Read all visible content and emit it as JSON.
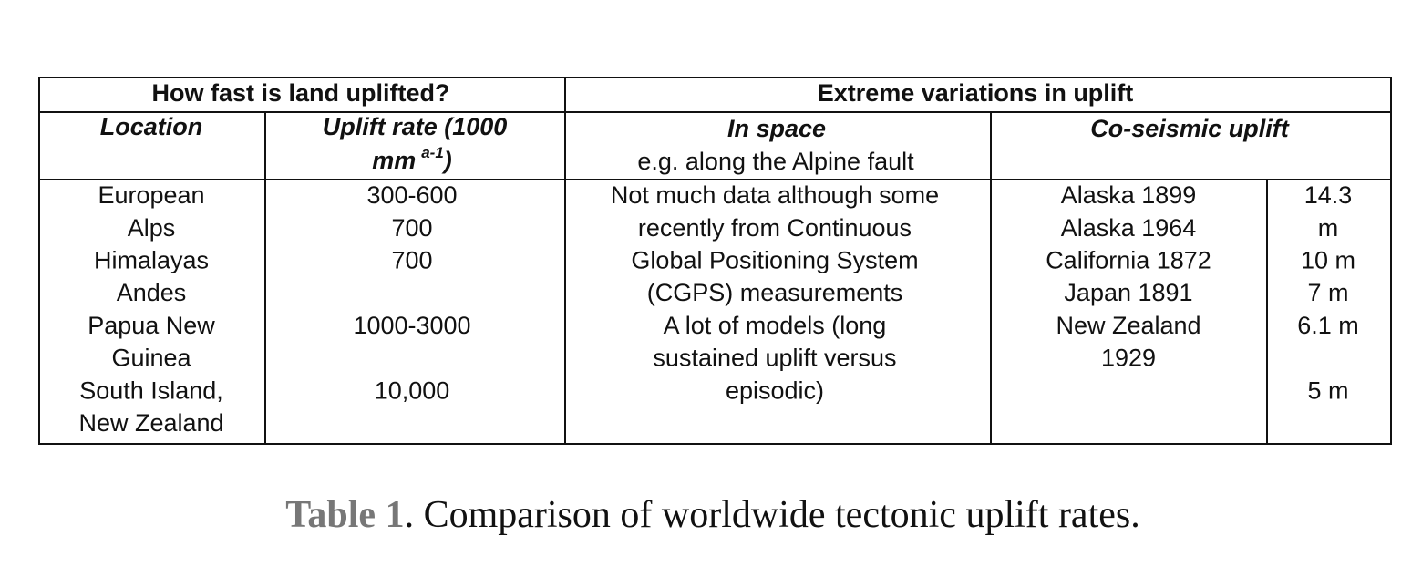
{
  "table": {
    "group_headers": [
      "How fast is land uplifted?",
      "Extreme variations in uplift"
    ],
    "column_headers": {
      "location": "Location",
      "uplift_rate": {
        "line1": "Uplift rate (1000",
        "line2": "mm",
        "superscript": "a-1",
        "close": ")"
      },
      "in_space": {
        "title": "In space",
        "subtitle": "e.g. along the Alpine fault"
      },
      "co_seismic": "Co-seismic uplift"
    },
    "columns": [
      {
        "lines": [
          "European",
          "Alps",
          "Himalayas",
          "Andes",
          "Papua New",
          "Guinea",
          "South Island,",
          "New Zealand"
        ]
      },
      {
        "lines": [
          "300-600",
          "700",
          "700",
          null,
          "1000-3000",
          null,
          "10,000"
        ]
      },
      {
        "lines": [
          "Not much data although some",
          "recently from Continuous",
          "Global Positioning System",
          "(CGPS) measurements",
          "A lot of models (long",
          "sustained uplift versus",
          "episodic)"
        ]
      },
      {
        "lines": [
          "Alaska 1899",
          "Alaska 1964",
          "California 1872",
          "Japan 1891",
          "New Zealand",
          "1929"
        ]
      },
      {
        "lines": [
          "14.3",
          "m",
          "10 m",
          "7 m",
          "6.1 m",
          null,
          "5 m"
        ]
      }
    ]
  },
  "caption": {
    "label": "Table 1",
    "text": ". Comparison of worldwide tectonic uplift rates."
  }
}
